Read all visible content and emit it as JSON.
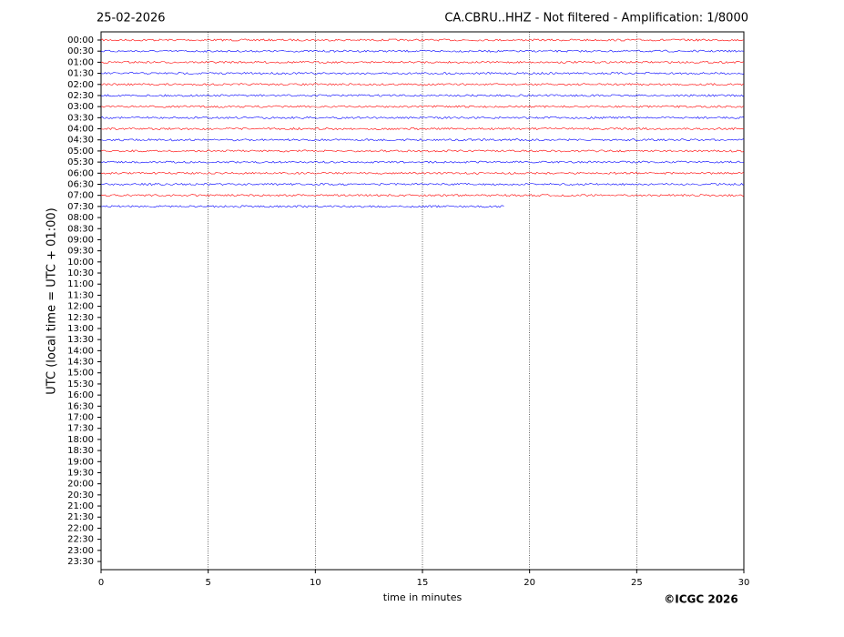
{
  "chart_data": {
    "type": "helicorder",
    "date": "25-02-2026",
    "title": "CA.CBRU..HHZ - Not filtered - Amplification: 1/8000",
    "ylabel": "UTC (local time = UTC + 01:00)",
    "xlabel": "time in minutes",
    "credit": "©ICGC 2026",
    "categories": [
      "00:00",
      "00:30",
      "01:00",
      "01:30",
      "02:00",
      "02:30",
      "03:00",
      "03:30",
      "04:00",
      "04:30",
      "05:00",
      "05:30",
      "06:00",
      "06:30",
      "07:00",
      "07:30",
      "08:00",
      "08:30",
      "09:00",
      "09:30",
      "10:00",
      "10:30",
      "11:00",
      "11:30",
      "12:00",
      "12:30",
      "13:00",
      "13:30",
      "14:00",
      "14:30",
      "15:00",
      "15:30",
      "16:00",
      "16:30",
      "17:00",
      "17:30",
      "18:00",
      "18:30",
      "19:00",
      "19:30",
      "20:00",
      "20:30",
      "21:00",
      "21:30",
      "22:00",
      "22:30",
      "23:00",
      "23:30"
    ],
    "values": [
      30,
      30,
      30,
      30,
      30,
      30,
      30,
      30,
      30,
      30,
      30,
      30,
      30,
      30,
      30,
      18.8,
      null,
      null,
      null,
      null,
      null,
      null,
      null,
      null,
      null,
      null,
      null,
      null,
      null,
      null,
      null,
      null,
      null,
      null,
      null,
      null,
      null,
      null,
      null,
      null,
      null,
      null,
      null,
      null,
      null,
      null,
      null,
      null
    ],
    "colors": [
      "#ff0000",
      "#0000ff"
    ],
    "xlim": [
      0,
      30
    ],
    "xticks": [
      0,
      5,
      10,
      15,
      20,
      25,
      30
    ],
    "grid": true
  }
}
